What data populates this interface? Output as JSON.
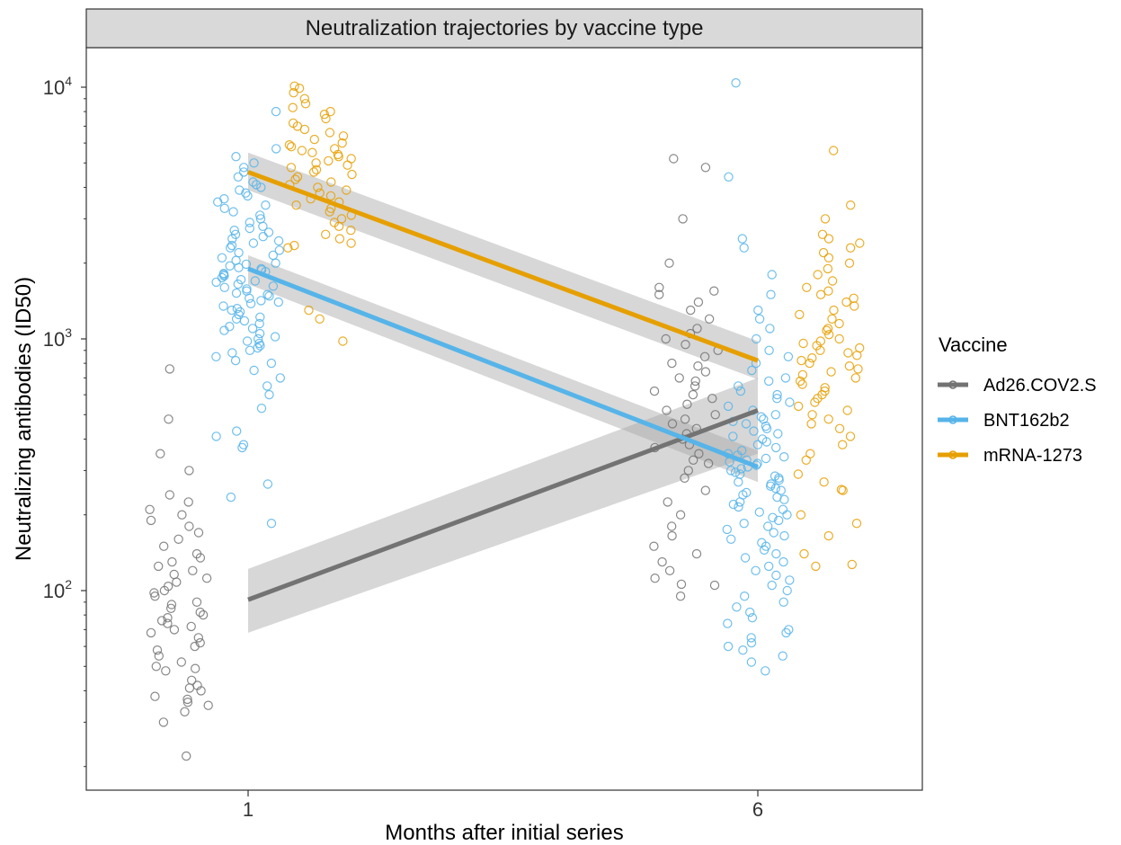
{
  "chart_data": {
    "type": "scatter",
    "title": "Neutralization trajectories by vaccine type",
    "xlabel": "Months after initial series",
    "ylabel": "Neutralizing antibodies (ID50)",
    "x_ticks": [
      "1",
      "6"
    ],
    "y_scale": "log10",
    "y_ticks": [
      {
        "base": "10",
        "exp": "2",
        "value": 100
      },
      {
        "base": "10",
        "exp": "3",
        "value": 1000
      },
      {
        "base": "10",
        "exp": "4",
        "value": 10000
      }
    ],
    "ylim": [
      18,
      16000
    ],
    "grid": false,
    "legend": {
      "title": "Vaccine",
      "position": "right",
      "entries": [
        {
          "name": "Ad26.COV2.S",
          "color": "#737373"
        },
        {
          "name": "BNT162b2",
          "color": "#56B4E9"
        },
        {
          "name": "mRNA-1273",
          "color": "#E69F00"
        }
      ]
    },
    "series": [
      {
        "name": "Ad26.COV2.S",
        "color": "#737373",
        "fit": {
          "x": [
            1,
            6
          ],
          "y": [
            92,
            520
          ]
        },
        "ci_lower": [
          68,
          350
        ],
        "ci_upper": [
          122,
          700
        ],
        "points": {
          "month1": [
            22,
            30,
            33,
            35,
            36,
            37,
            38,
            40,
            41,
            42,
            44,
            48,
            49,
            50,
            52,
            55,
            58,
            60,
            62,
            65,
            68,
            70,
            72,
            74,
            76,
            78,
            80,
            82,
            85,
            88,
            90,
            95,
            98,
            100,
            104,
            108,
            112,
            116,
            120,
            125,
            130,
            135,
            140,
            150,
            160,
            170,
            180,
            190,
            200,
            210,
            225,
            240,
            300,
            350,
            480,
            760
          ],
          "month6": [
            95,
            105,
            106,
            112,
            120,
            130,
            140,
            150,
            165,
            180,
            200,
            225,
            250,
            280,
            300,
            320,
            330,
            350,
            370,
            380,
            400,
            420,
            440,
            460,
            480,
            500,
            520,
            550,
            580,
            600,
            620,
            650,
            680,
            700,
            740,
            780,
            800,
            850,
            900,
            950,
            1000,
            1050,
            1100,
            1200,
            1300,
            1400,
            1500,
            1550,
            1600,
            2000,
            3000,
            4800,
            5200
          ]
        }
      },
      {
        "name": "BNT162b2",
        "color": "#56B4E9",
        "fit": {
          "x": [
            1,
            6
          ],
          "y": [
            1900,
            310
          ]
        },
        "ci_lower": [
          1650,
          270
        ],
        "ci_upper": [
          2150,
          360
        ],
        "points": {
          "month1": [
            185,
            235,
            265,
            370,
            380,
            410,
            430,
            530,
            600,
            650,
            700,
            750,
            800,
            820,
            850,
            880,
            900,
            920,
            940,
            960,
            980,
            1000,
            1020,
            1050,
            1080,
            1100,
            1120,
            1150,
            1180,
            1200,
            1220,
            1250,
            1280,
            1300,
            1320,
            1350,
            1380,
            1400,
            1420,
            1450,
            1480,
            1500,
            1520,
            1550,
            1580,
            1600,
            1620,
            1650,
            1680,
            1700,
            1720,
            1750,
            1780,
            1800,
            1820,
            1850,
            1880,
            1900,
            1920,
            1950,
            1980,
            2000,
            2050,
            2100,
            2150,
            2200,
            2250,
            2300,
            2350,
            2400,
            2450,
            2500,
            2550,
            2600,
            2650,
            2700,
            2750,
            2800,
            2900,
            3000,
            3100,
            3200,
            3300,
            3400,
            3500,
            3600,
            3700,
            3800,
            3900,
            4000,
            4100,
            4200,
            4400,
            4600,
            4800,
            5000,
            5300,
            5700,
            8000
          ],
          "month6": [
            48,
            52,
            55,
            58,
            60,
            62,
            65,
            68,
            70,
            74,
            78,
            82,
            86,
            90,
            95,
            100,
            105,
            110,
            115,
            120,
            125,
            130,
            135,
            140,
            145,
            150,
            155,
            160,
            165,
            170,
            175,
            180,
            185,
            190,
            195,
            200,
            205,
            210,
            215,
            220,
            225,
            230,
            235,
            240,
            245,
            250,
            255,
            260,
            265,
            270,
            275,
            280,
            285,
            290,
            295,
            300,
            305,
            310,
            315,
            320,
            325,
            330,
            335,
            340,
            345,
            350,
            360,
            370,
            380,
            390,
            400,
            410,
            420,
            430,
            440,
            450,
            460,
            470,
            480,
            490,
            500,
            520,
            540,
            560,
            580,
            600,
            620,
            650,
            680,
            700,
            750,
            800,
            850,
            900,
            1000,
            1100,
            1200,
            1300,
            1500,
            1800,
            2300,
            2500,
            4400,
            10400
          ]
        }
      },
      {
        "name": "mRNA-1273",
        "color": "#E69F00",
        "fit": {
          "x": [
            1,
            6
          ],
          "y": [
            4600,
            820
          ]
        },
        "ci_lower": [
          3900,
          690
        ],
        "ci_upper": [
          5500,
          980
        ],
        "points": {
          "month1": [
            980,
            1200,
            1300,
            2300,
            2350,
            2400,
            2500,
            2600,
            2700,
            2800,
            2900,
            3000,
            3100,
            3200,
            3300,
            3400,
            3500,
            3600,
            3700,
            3800,
            3900,
            4000,
            4100,
            4200,
            4300,
            4400,
            4500,
            4600,
            4700,
            4800,
            4900,
            5000,
            5100,
            5200,
            5300,
            5400,
            5500,
            5600,
            5700,
            5800,
            5900,
            6000,
            6200,
            6400,
            6600,
            6800,
            7000,
            7200,
            7500,
            7800,
            8000,
            8300,
            8600,
            9000,
            9500,
            9900,
            10100
          ],
          "month6": [
            125,
            127,
            140,
            165,
            185,
            200,
            250,
            252,
            270,
            290,
            330,
            350,
            380,
            410,
            440,
            460,
            480,
            500,
            520,
            540,
            560,
            580,
            600,
            620,
            640,
            660,
            680,
            700,
            720,
            740,
            760,
            780,
            800,
            820,
            840,
            860,
            880,
            900,
            920,
            940,
            960,
            980,
            1000,
            1040,
            1080,
            1100,
            1150,
            1200,
            1250,
            1300,
            1350,
            1400,
            1450,
            1500,
            1550,
            1600,
            1700,
            1800,
            1900,
            2000,
            2100,
            2200,
            2300,
            2400,
            2500,
            2600,
            3000,
            3400,
            5600
          ]
        }
      }
    ]
  }
}
